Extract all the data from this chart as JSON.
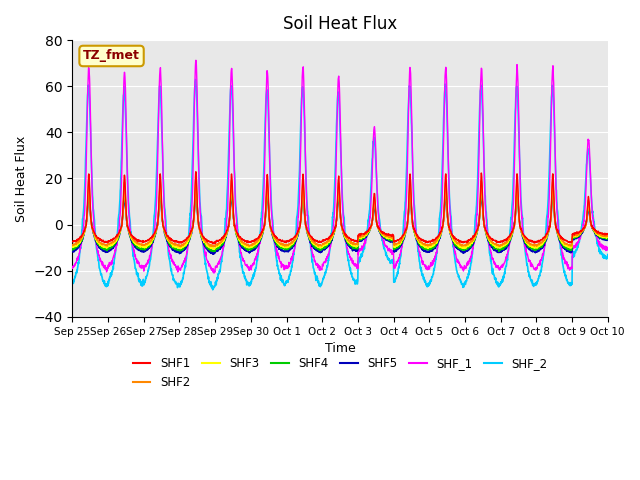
{
  "title": "Soil Heat Flux",
  "xlabel": "Time",
  "ylabel": "Soil Heat Flux",
  "ylim": [
    -40,
    80
  ],
  "yticks": [
    -40,
    -20,
    0,
    20,
    40,
    60,
    80
  ],
  "bg_color": "#e8e8e8",
  "annotation_text": "TZ_fmet",
  "annotation_bg": "#ffffcc",
  "annotation_border": "#cc9900",
  "series_colors": {
    "SHF1": "#ff0000",
    "SHF2": "#ff8800",
    "SHF3": "#ffff00",
    "SHF4": "#00cc00",
    "SHF5": "#0000bb",
    "SHF_1": "#ff00ff",
    "SHF_2": "#00ccff"
  },
  "num_days": 15,
  "points_per_day": 144
}
